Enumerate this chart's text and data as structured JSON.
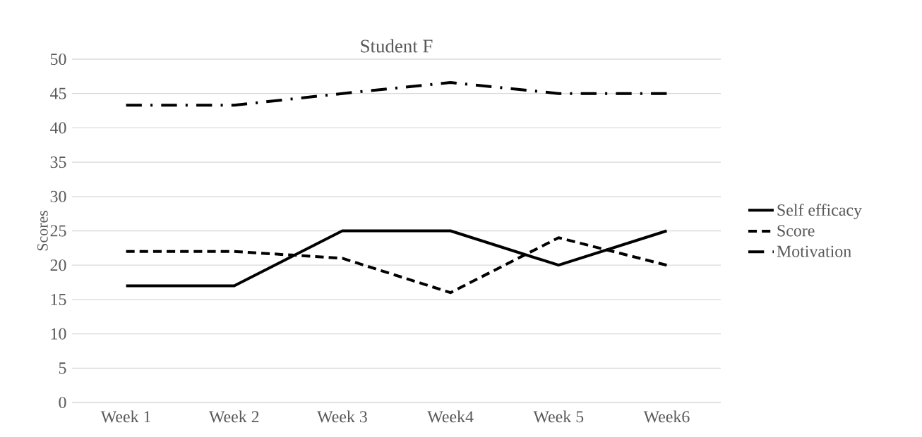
{
  "chart_data": {
    "type": "line",
    "title": "Student F",
    "ylabel": "Scores",
    "categories": [
      "Week 1",
      "Week 2",
      "Week 3",
      "Week4",
      "Week 5",
      "Week6"
    ],
    "series": [
      {
        "name": "Self efficacy",
        "color": "#000000",
        "line_style": "solid",
        "values": [
          17,
          17,
          25,
          25,
          20,
          25
        ]
      },
      {
        "name": "Score",
        "color": "#000000",
        "line_style": "dashed",
        "values": [
          22,
          22,
          21,
          16,
          24,
          20
        ]
      },
      {
        "name": "Motivation",
        "color": "#000000",
        "line_style": "dashdot",
        "values": [
          43.3,
          43.3,
          45,
          46.6,
          45,
          45
        ]
      }
    ],
    "ylim": [
      0,
      50
    ],
    "yticks": [
      0,
      5,
      10,
      15,
      20,
      25,
      30,
      35,
      40,
      45,
      50
    ],
    "grid": "y",
    "legend": "right",
    "marker": "none"
  }
}
